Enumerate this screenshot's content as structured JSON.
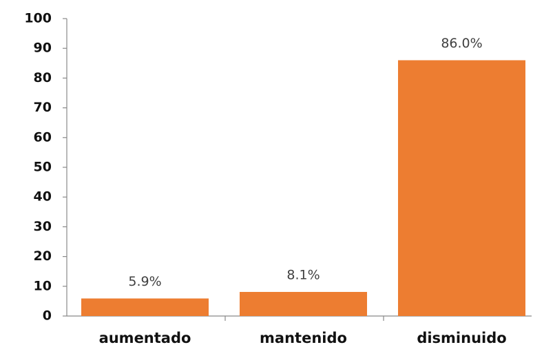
{
  "chart_data": {
    "type": "bar",
    "categories": [
      "aumentado",
      "mantenido",
      "disminuido"
    ],
    "values": [
      5.9,
      8.1,
      86.0
    ],
    "value_labels": [
      "5.9%",
      "8.1%",
      "86.0%"
    ],
    "color": "#ed7d31",
    "ylim": [
      0,
      100
    ],
    "yticks": [
      0,
      10,
      20,
      30,
      40,
      50,
      60,
      70,
      80,
      90,
      100
    ],
    "grid": false
  }
}
